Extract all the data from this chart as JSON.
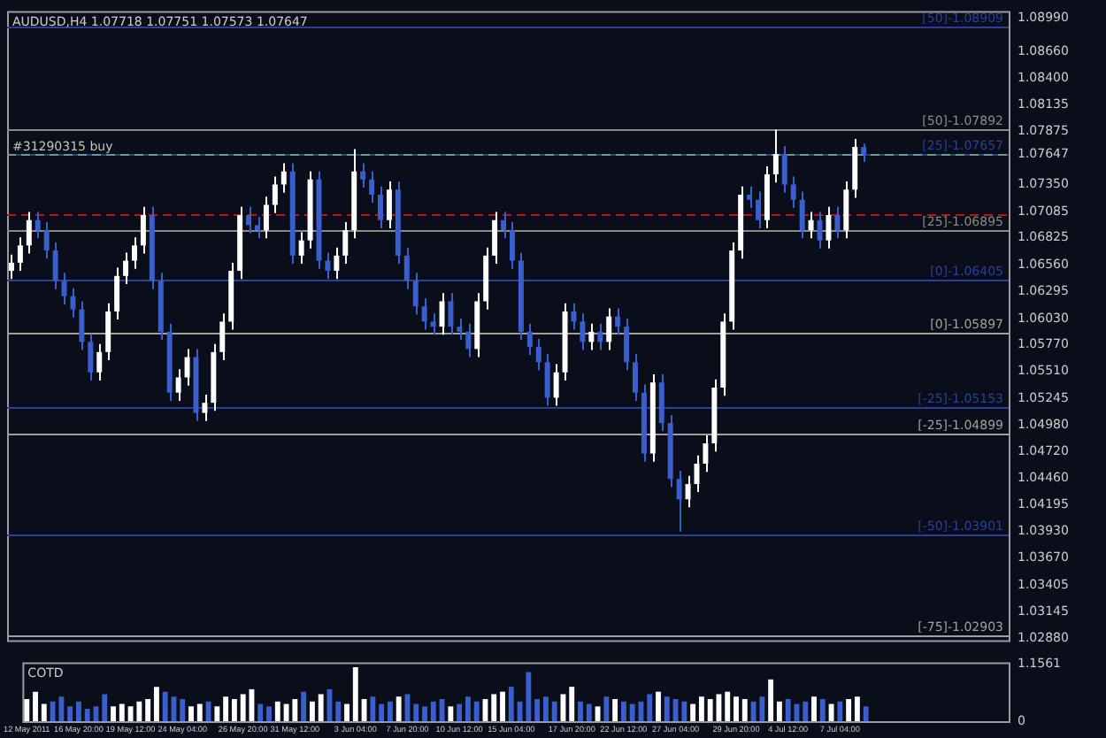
{
  "chart_data": [
    {
      "type": "candlestick",
      "title": "AUDUSD,H4 1.07718 1.07751 1.07573 1.07647",
      "tick_labels": "y",
      "categories": [
        null,
        null,
        null,
        null,
        null,
        null,
        null,
        null,
        null,
        null,
        null,
        null,
        null,
        null,
        null,
        null,
        null,
        null,
        null,
        null,
        null,
        null,
        null,
        null,
        null,
        null,
        null,
        null,
        null,
        null,
        null,
        null,
        null,
        null,
        null,
        null,
        null,
        null,
        null,
        null,
        null,
        null,
        null,
        null,
        null,
        null,
        null,
        null,
        null,
        null,
        null,
        null,
        null,
        null,
        null,
        null,
        null,
        null,
        null,
        null,
        null,
        null,
        null,
        null,
        null,
        null,
        null,
        null,
        null,
        null,
        null,
        null,
        null,
        null,
        null,
        null,
        null,
        null,
        null,
        null,
        null,
        null,
        null,
        null,
        null,
        null,
        null,
        null,
        null,
        null,
        null,
        null,
        null,
        null,
        null,
        null,
        null,
        null,
        null,
        null,
        null,
        null,
        null,
        null,
        null,
        null,
        null,
        null,
        null,
        null,
        null,
        null,
        null,
        null
      ],
      "ohlc": [
        [
          1.065,
          1.0666,
          1.0642,
          1.0658
        ],
        [
          1.0658,
          1.0683,
          1.065,
          1.0675
        ],
        [
          1.0675,
          1.0708,
          1.0667,
          1.07
        ],
        [
          1.07,
          1.0708,
          1.0682,
          1.069
        ],
        [
          1.069,
          1.0698,
          1.0662,
          1.067
        ],
        [
          1.067,
          1.0678,
          1.0632,
          1.064
        ],
        [
          1.064,
          1.0648,
          1.0617,
          1.0625
        ],
        [
          1.0625,
          1.0633,
          1.0604,
          1.0612
        ],
        [
          1.0612,
          1.062,
          1.0572,
          1.058
        ],
        [
          1.058,
          1.0588,
          1.0542,
          1.055
        ],
        [
          1.055,
          1.0578,
          1.0542,
          1.057
        ],
        [
          1.057,
          1.0618,
          1.0562,
          1.061
        ],
        [
          1.061,
          1.0653,
          1.0602,
          1.0645
        ],
        [
          1.0645,
          1.0668,
          1.0637,
          1.066
        ],
        [
          1.066,
          1.0683,
          1.0652,
          1.0675
        ],
        [
          1.0675,
          1.0713,
          1.0667,
          1.0705
        ],
        [
          1.0705,
          1.0713,
          1.0632,
          1.064
        ],
        [
          1.064,
          1.0648,
          1.0582,
          1.059
        ],
        [
          1.059,
          1.0598,
          1.0522,
          1.053
        ],
        [
          1.053,
          1.0553,
          1.0522,
          1.0545
        ],
        [
          1.0545,
          1.0573,
          1.0537,
          1.0565
        ],
        [
          1.0565,
          1.0573,
          1.0502,
          1.051
        ],
        [
          1.051,
          1.0528,
          1.0502,
          1.052
        ],
        [
          1.052,
          1.0578,
          1.0512,
          1.057
        ],
        [
          1.057,
          1.0608,
          1.0562,
          1.06
        ],
        [
          1.06,
          1.0658,
          1.0592,
          1.065
        ],
        [
          1.065,
          1.0713,
          1.0642,
          1.0705
        ],
        [
          1.0705,
          1.0713,
          1.0687,
          1.0695
        ],
        [
          1.0695,
          1.0703,
          1.0682,
          1.069
        ],
        [
          1.069,
          1.0723,
          1.0682,
          1.0715
        ],
        [
          1.0715,
          1.0743,
          1.0707,
          1.0735
        ],
        [
          1.0735,
          1.0756,
          1.0727,
          1.0748
        ],
        [
          1.0748,
          1.0756,
          1.0657,
          1.0665
        ],
        [
          1.0665,
          1.0688,
          1.0657,
          1.068
        ],
        [
          1.068,
          1.0748,
          1.0672,
          1.074
        ],
        [
          1.074,
          1.0748,
          1.0652,
          1.066
        ],
        [
          1.066,
          1.0668,
          1.0642,
          1.065
        ],
        [
          1.065,
          1.0673,
          1.0642,
          1.0665
        ],
        [
          1.0665,
          1.0698,
          1.0657,
          1.069
        ],
        [
          1.069,
          1.077,
          1.0682,
          1.0748
        ],
        [
          1.0748,
          1.0756,
          1.0732,
          1.074
        ],
        [
          1.074,
          1.0748,
          1.0717,
          1.0725
        ],
        [
          1.0725,
          1.0733,
          1.0692,
          1.07
        ],
        [
          1.07,
          1.0738,
          1.0692,
          1.073
        ],
        [
          1.073,
          1.0738,
          1.0657,
          1.0665
        ],
        [
          1.0665,
          1.0673,
          1.0632,
          1.064
        ],
        [
          1.064,
          1.0648,
          1.0607,
          1.0615
        ],
        [
          1.0615,
          1.0623,
          1.0592,
          1.06
        ],
        [
          1.06,
          1.0608,
          1.0587,
          1.0595
        ],
        [
          1.0595,
          1.0628,
          1.0587,
          1.062
        ],
        [
          1.062,
          1.0628,
          1.0587,
          1.0595
        ],
        [
          1.0595,
          1.0603,
          1.0582,
          1.059
        ],
        [
          1.059,
          1.0598,
          1.0565,
          1.0573
        ],
        [
          1.0573,
          1.0628,
          1.0565,
          1.062
        ],
        [
          1.062,
          1.0673,
          1.0612,
          1.0665
        ],
        [
          1.0665,
          1.0708,
          1.0657,
          1.07
        ],
        [
          1.07,
          1.0708,
          1.0682,
          1.069
        ],
        [
          1.069,
          1.0698,
          1.0652,
          1.066
        ],
        [
          1.066,
          1.0668,
          1.0582,
          1.059
        ],
        [
          1.059,
          1.0598,
          1.0567,
          1.0575
        ],
        [
          1.0575,
          1.0583,
          1.0552,
          1.056
        ],
        [
          1.056,
          1.0568,
          1.0517,
          1.0525
        ],
        [
          1.0525,
          1.0558,
          1.0517,
          1.055
        ],
        [
          1.055,
          1.0618,
          1.0542,
          1.061
        ],
        [
          1.061,
          1.0618,
          1.0592,
          1.06
        ],
        [
          1.06,
          1.0608,
          1.0572,
          1.058
        ],
        [
          1.058,
          1.0598,
          1.0572,
          1.059
        ],
        [
          1.059,
          1.0598,
          1.0572,
          1.058
        ],
        [
          1.058,
          1.0613,
          1.0572,
          1.0605
        ],
        [
          1.0605,
          1.0613,
          1.0587,
          1.0595
        ],
        [
          1.0595,
          1.0603,
          1.0552,
          1.056
        ],
        [
          1.056,
          1.0568,
          1.0522,
          1.053
        ],
        [
          1.053,
          1.0538,
          1.0462,
          1.047
        ],
        [
          1.047,
          1.0548,
          1.0462,
          1.054
        ],
        [
          1.054,
          1.0548,
          1.0492,
          1.05
        ],
        [
          1.05,
          1.0508,
          1.0437,
          1.0445
        ],
        [
          1.0445,
          1.0453,
          1.0393,
          1.0425
        ],
        [
          1.0425,
          1.0448,
          1.0417,
          1.044
        ],
        [
          1.044,
          1.0468,
          1.0432,
          1.046
        ],
        [
          1.046,
          1.0488,
          1.0452,
          1.048
        ],
        [
          1.048,
          1.0543,
          1.0472,
          1.0535
        ],
        [
          1.0535,
          1.0608,
          1.0527,
          1.06
        ],
        [
          1.06,
          1.0678,
          1.0592,
          1.067
        ],
        [
          1.067,
          1.0733,
          1.0662,
          1.0725
        ],
        [
          1.0725,
          1.0733,
          1.0712,
          1.072
        ],
        [
          1.072,
          1.0728,
          1.0692,
          1.07
        ],
        [
          1.07,
          1.0753,
          1.0692,
          1.0745
        ],
        [
          1.0745,
          1.0789,
          1.0737,
          1.0765
        ],
        [
          1.0765,
          1.0773,
          1.0727,
          1.0735
        ],
        [
          1.0735,
          1.0743,
          1.0712,
          1.072
        ],
        [
          1.072,
          1.0728,
          1.0682,
          1.069
        ],
        [
          1.069,
          1.0708,
          1.0682,
          1.07
        ],
        [
          1.07,
          1.0708,
          1.0672,
          1.068
        ],
        [
          1.068,
          1.0713,
          1.0672,
          1.0705
        ],
        [
          1.0705,
          1.0713,
          1.0682,
          1.069
        ],
        [
          1.069,
          1.0738,
          1.0682,
          1.073
        ],
        [
          1.073,
          1.078,
          1.0722,
          1.0772
        ],
        [
          1.07718,
          1.07751,
          1.07573,
          1.07647
        ],
        null,
        null,
        null,
        null,
        null,
        null,
        null,
        null,
        null,
        null,
        null,
        null,
        null,
        null,
        null,
        null
      ],
      "colors": [
        "#ffffff",
        "#ffffff",
        "#ffffff",
        "#3a5fcd",
        "#3a5fcd",
        "#3a5fcd",
        "#3a5fcd",
        "#3a5fcd",
        "#3a5fcd",
        "#3a5fcd",
        "#ffffff",
        "#ffffff",
        "#ffffff",
        "#ffffff",
        "#ffffff",
        "#ffffff",
        "#3a5fcd",
        "#3a5fcd",
        "#3a5fcd",
        "#ffffff",
        "#ffffff",
        "#3a5fcd",
        "#ffffff",
        "#ffffff",
        "#ffffff",
        "#ffffff",
        "#ffffff",
        "#3a5fcd",
        "#3a5fcd",
        "#ffffff",
        "#ffffff",
        "#ffffff",
        "#3a5fcd",
        "#ffffff",
        "#ffffff",
        "#3a5fcd",
        "#3a5fcd",
        "#ffffff",
        "#ffffff",
        "#ffffff",
        "#3a5fcd",
        "#3a5fcd",
        "#3a5fcd",
        "#ffffff",
        "#3a5fcd",
        "#3a5fcd",
        "#3a5fcd",
        "#3a5fcd",
        "#3a5fcd",
        "#ffffff",
        "#3a5fcd",
        "#3a5fcd",
        "#3a5fcd",
        "#ffffff",
        "#ffffff",
        "#ffffff",
        "#3a5fcd",
        "#3a5fcd",
        "#3a5fcd",
        "#3a5fcd",
        "#3a5fcd",
        "#3a5fcd",
        "#ffffff",
        "#ffffff",
        "#3a5fcd",
        "#3a5fcd",
        "#ffffff",
        "#3a5fcd",
        "#ffffff",
        "#3a5fcd",
        "#3a5fcd",
        "#3a5fcd",
        "#3a5fcd",
        "#ffffff",
        "#3a5fcd",
        "#3a5fcd",
        "#3a5fcd",
        "#ffffff",
        "#ffffff",
        "#ffffff",
        "#ffffff",
        "#ffffff",
        "#ffffff",
        "#ffffff",
        "#3a5fcd",
        "#3a5fcd",
        "#ffffff",
        "#ffffff",
        "#3a5fcd",
        "#3a5fcd",
        "#3a5fcd",
        "#ffffff",
        "#3a5fcd",
        "#ffffff",
        "#3a5fcd",
        "#ffffff",
        "#ffffff",
        "#3a5fcd",
        null,
        null,
        null,
        null,
        null,
        null,
        null,
        null,
        null,
        null,
        null,
        null,
        null,
        null,
        null,
        null
      ],
      "ylim": [
        1.0286,
        1.0906
      ],
      "yticks": [
        {
          "value": 1.0899,
          "label": "1.08990"
        },
        {
          "value": 1.0866,
          "label": "1.08660"
        },
        {
          "value": 1.084,
          "label": "1.08400"
        },
        {
          "value": 1.08135,
          "label": "1.08135"
        },
        {
          "value": 1.07875,
          "label": "1.07875"
        },
        {
          "value": 1.07647,
          "label": "1.07647"
        },
        {
          "value": 1.0735,
          "label": "1.07350"
        },
        {
          "value": 1.07085,
          "label": "1.07085"
        },
        {
          "value": 1.06825,
          "label": "1.06825"
        },
        {
          "value": 1.0656,
          "label": "1.06560"
        },
        {
          "value": 1.06295,
          "label": "1.06295"
        },
        {
          "value": 1.0603,
          "label": "1.06030"
        },
        {
          "value": 1.0577,
          "label": "1.05770"
        },
        {
          "value": 1.0551,
          "label": "1.05510"
        },
        {
          "value": 1.05245,
          "label": "1.05245"
        },
        {
          "value": 1.0498,
          "label": "1.04980"
        },
        {
          "value": 1.0472,
          "label": "1.04720"
        },
        {
          "value": 1.0446,
          "label": "1.04460"
        },
        {
          "value": 1.04195,
          "label": "1.04195"
        },
        {
          "value": 1.0393,
          "label": "1.03930"
        },
        {
          "value": 1.0367,
          "label": "1.03670"
        },
        {
          "value": 1.03405,
          "label": "1.03405"
        },
        {
          "value": 1.03145,
          "label": "1.03145"
        },
        {
          "value": 1.0288,
          "label": "1.02880"
        }
      ],
      "annotations": [
        {
          "text": "[50]-1.08909",
          "y": 1.08909
        },
        {
          "text": "[50]-1.07892",
          "y": 1.07892
        },
        {
          "text": "[25]-1.07657",
          "y": 1.07657
        },
        {
          "text": "[25]-1.06895",
          "y": 1.06895
        },
        {
          "text": "[0]-1.06405",
          "y": 1.06405
        },
        {
          "text": "[0]-1.05897",
          "y": 1.05897
        },
        {
          "text": "[-25]-1.05153",
          "y": 1.05153
        },
        {
          "text": "[-25]-1.04899",
          "y": 1.04899
        },
        {
          "text": "[-50]-1.03901",
          "y": 1.03901
        },
        {
          "text": "[-75]-1.02903",
          "y": 1.02903
        }
      ],
      "ref_lines": [
        {
          "axis": "y",
          "value": 1.08909,
          "color": "#2a3f9a",
          "line_style": "solid"
        },
        {
          "axis": "y",
          "value": 1.07892,
          "color": "#8a8a80",
          "line_style": "solid"
        },
        {
          "axis": "y",
          "value": 1.07657,
          "color": "#2a3f9a",
          "line_style": "solid"
        },
        {
          "axis": "y",
          "value": 1.0765,
          "label": "#31290315 buy",
          "color": "#5f9f8f",
          "line_style": "dashed"
        },
        {
          "axis": "y",
          "value": 1.0705,
          "color": "#b01818",
          "line_style": "dashed"
        },
        {
          "axis": "y",
          "value": 1.06895,
          "color": "#8a8a80",
          "line_style": "solid"
        },
        {
          "axis": "y",
          "value": 1.06405,
          "color": "#2a3f9a",
          "line_style": "solid"
        },
        {
          "axis": "y",
          "value": 1.05897,
          "color": "#a0a098",
          "line_style": "solid"
        },
        {
          "axis": "y",
          "value": 1.05153,
          "color": "#2a3f9a",
          "line_style": "solid"
        },
        {
          "axis": "y",
          "value": 1.04899,
          "color": "#a0a098",
          "line_style": "solid"
        },
        {
          "axis": "y",
          "value": 1.03901,
          "color": "#2a3f9a",
          "line_style": "solid"
        },
        {
          "axis": "y",
          "value": 1.02903,
          "color": "#a0a098",
          "line_style": "solid"
        }
      ]
    },
    {
      "type": "bar",
      "title": "COTD",
      "categories": [
        "12 May 2011",
        null,
        null,
        null,
        null,
        null,
        "16 May 20:00",
        null,
        null,
        null,
        null,
        null,
        "19 May 12:00",
        null,
        null,
        null,
        null,
        null,
        "24 May 04:00",
        null,
        null,
        null,
        null,
        null,
        null,
        "26 May 20:00",
        null,
        null,
        null,
        null,
        null,
        "31 May 12:00",
        null,
        null,
        null,
        null,
        null,
        null,
        "3 Jun 04:00",
        null,
        null,
        null,
        null,
        null,
        "7 Jun 20:00",
        null,
        null,
        null,
        null,
        null,
        "10 Jun 12:00",
        null,
        null,
        null,
        null,
        null,
        "15 Jun 04:00",
        null,
        null,
        null,
        null,
        null,
        null,
        "17 Jun 20:00",
        null,
        null,
        null,
        null,
        null,
        "22 Jun 12:00",
        null,
        null,
        null,
        null,
        null,
        "27 Jun 04:00",
        null,
        null,
        null,
        null,
        null,
        null,
        "29 Jun 20:00",
        null,
        null,
        null,
        null,
        null,
        "4 Jul 12:00",
        null,
        null,
        null,
        null,
        null,
        "7 Jul 04:00",
        null,
        null,
        null,
        null,
        null,
        null,
        null,
        null,
        null,
        null,
        null,
        null,
        null,
        null,
        null,
        null,
        null,
        null,
        null
      ],
      "values": [
        0.45,
        0.6,
        0.35,
        0.4,
        0.5,
        0.3,
        0.4,
        0.25,
        0.3,
        0.55,
        0.3,
        0.35,
        0.3,
        0.4,
        0.45,
        0.7,
        0.6,
        0.5,
        0.45,
        0.3,
        0.35,
        0.4,
        0.3,
        0.5,
        0.45,
        0.55,
        0.65,
        0.35,
        0.3,
        0.4,
        0.35,
        0.45,
        0.6,
        0.4,
        0.55,
        0.65,
        0.4,
        0.35,
        1.1,
        0.45,
        0.5,
        0.35,
        0.4,
        0.5,
        0.55,
        0.35,
        0.3,
        0.4,
        0.45,
        0.3,
        0.35,
        0.5,
        0.4,
        0.45,
        0.55,
        0.6,
        0.7,
        0.4,
        1.0,
        0.45,
        0.5,
        0.4,
        0.55,
        0.7,
        0.4,
        0.35,
        0.3,
        0.5,
        0.45,
        0.4,
        0.35,
        0.4,
        0.55,
        0.6,
        0.5,
        0.45,
        0.4,
        0.35,
        0.5,
        0.45,
        0.55,
        0.6,
        0.5,
        0.45,
        0.4,
        0.5,
        0.85,
        0.4,
        0.45,
        0.35,
        0.4,
        0.5,
        0.45,
        0.35,
        0.4,
        0.45,
        0.5,
        0.3,
        null,
        null,
        null,
        null,
        null,
        null,
        null,
        null,
        null,
        null,
        null,
        null,
        null,
        null,
        null,
        null
      ],
      "colors": [
        "#ffffff",
        "#ffffff",
        "#ffffff",
        "#3a5fcd",
        "#3a5fcd",
        "#3a5fcd",
        "#3a5fcd",
        "#3a5fcd",
        "#3a5fcd",
        "#3a5fcd",
        "#ffffff",
        "#ffffff",
        "#ffffff",
        "#ffffff",
        "#ffffff",
        "#ffffff",
        "#3a5fcd",
        "#3a5fcd",
        "#3a5fcd",
        "#ffffff",
        "#ffffff",
        "#3a5fcd",
        "#ffffff",
        "#ffffff",
        "#ffffff",
        "#ffffff",
        "#ffffff",
        "#3a5fcd",
        "#3a5fcd",
        "#ffffff",
        "#ffffff",
        "#ffffff",
        "#3a5fcd",
        "#ffffff",
        "#ffffff",
        "#3a5fcd",
        "#3a5fcd",
        "#ffffff",
        "#ffffff",
        "#ffffff",
        "#3a5fcd",
        "#3a5fcd",
        "#3a5fcd",
        "#ffffff",
        "#3a5fcd",
        "#3a5fcd",
        "#3a5fcd",
        "#3a5fcd",
        "#3a5fcd",
        "#ffffff",
        "#3a5fcd",
        "#3a5fcd",
        "#3a5fcd",
        "#ffffff",
        "#ffffff",
        "#ffffff",
        "#3a5fcd",
        "#3a5fcd",
        "#3a5fcd",
        "#3a5fcd",
        "#3a5fcd",
        "#3a5fcd",
        "#ffffff",
        "#ffffff",
        "#3a5fcd",
        "#3a5fcd",
        "#ffffff",
        "#3a5fcd",
        "#ffffff",
        "#3a5fcd",
        "#3a5fcd",
        "#3a5fcd",
        "#3a5fcd",
        "#ffffff",
        "#3a5fcd",
        "#3a5fcd",
        "#3a5fcd",
        "#ffffff",
        "#ffffff",
        "#ffffff",
        "#ffffff",
        "#ffffff",
        "#ffffff",
        "#ffffff",
        "#3a5fcd",
        "#3a5fcd",
        "#ffffff",
        "#ffffff",
        "#3a5fcd",
        "#3a5fcd",
        "#3a5fcd",
        "#ffffff",
        "#3a5fcd",
        "#ffffff",
        "#3a5fcd",
        "#ffffff",
        "#ffffff",
        "#3a5fcd",
        null,
        null,
        null,
        null,
        null,
        null,
        null,
        null,
        null,
        null,
        null,
        null,
        null,
        null,
        null,
        null
      ],
      "ylim": [
        0,
        1.2
      ],
      "yticks": [
        {
          "value": 1.1561,
          "label": "1.1561"
        },
        0
      ]
    }
  ]
}
